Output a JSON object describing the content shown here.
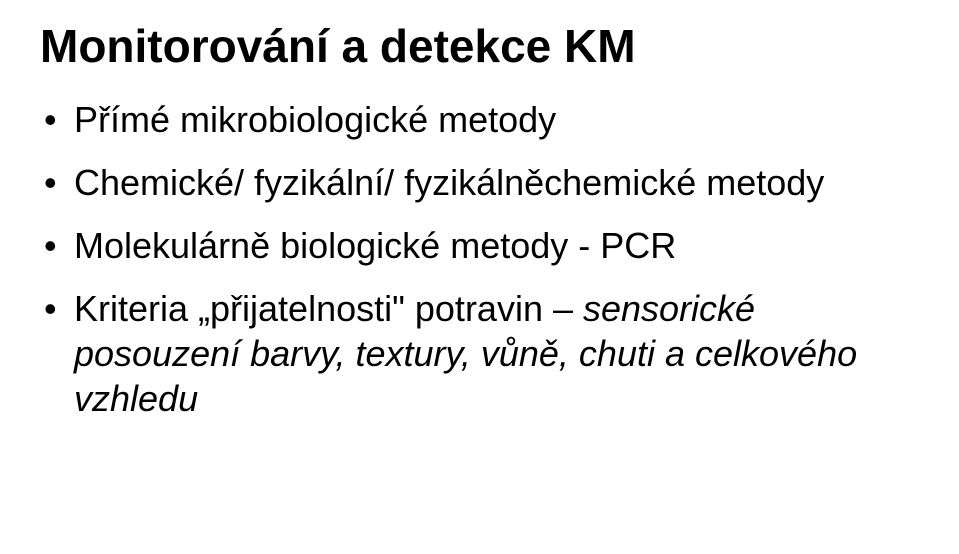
{
  "title": "Monitorování a detekce KM",
  "bullets": [
    {
      "text": "Přímé mikrobiologické metody"
    },
    {
      "text": "Chemické/ fyzikální/ fyzikálněchemické metody"
    },
    {
      "text": "Molekulárně biologické metody - PCR"
    },
    {
      "prefix": "Kriteria „přijatelnosti\" potravin – ",
      "italic": "sensorické posouzení barvy, textury, vůně, chuti a celkového vzhledu"
    }
  ],
  "style": {
    "background_color": "#ffffff",
    "text_color": "#000000",
    "title_fontsize": 46,
    "title_fontweight": 700,
    "bullet_fontsize": 36,
    "font_family": "Arial"
  }
}
